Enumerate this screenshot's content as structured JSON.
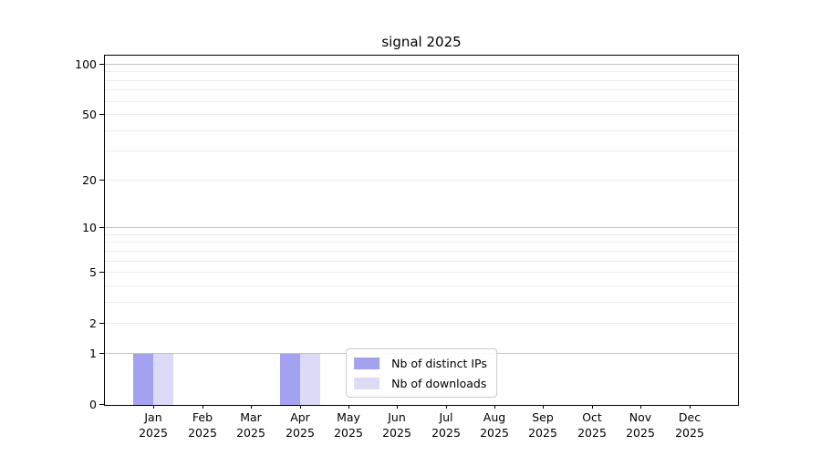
{
  "chart_data": {
    "type": "bar",
    "title": "signal 2025",
    "categories": [
      "Jan",
      "Feb",
      "Mar",
      "Apr",
      "May",
      "Jun",
      "Jul",
      "Aug",
      "Sep",
      "Oct",
      "Nov",
      "Dec"
    ],
    "category_year": "2025",
    "series": [
      {
        "name": "Nb of distinct IPs",
        "color": "#a2a2f0",
        "values": [
          1,
          0,
          0,
          1,
          0,
          0,
          0,
          0,
          0,
          0,
          0,
          0
        ]
      },
      {
        "name": "Nb of downloads",
        "color": "#dbdbf8",
        "values": [
          1,
          0,
          0,
          1,
          0,
          0,
          0,
          0,
          0,
          0,
          0,
          0
        ]
      }
    ],
    "y_axis": {
      "scale": "log10(1+v)",
      "tick_values": [
        0,
        1,
        2,
        5,
        10,
        20,
        50,
        100
      ],
      "major_grid_values": [
        1,
        10,
        100
      ],
      "minor_grid_values": [
        2,
        3,
        4,
        5,
        6,
        7,
        8,
        9,
        20,
        30,
        40,
        50,
        60,
        70,
        80,
        90
      ],
      "max_value": 113
    },
    "legend_position": "lower center",
    "grid": true,
    "colors": {
      "major_grid": "#c2c2c2",
      "minor_grid": "#ececec",
      "axis": "#000000"
    }
  }
}
